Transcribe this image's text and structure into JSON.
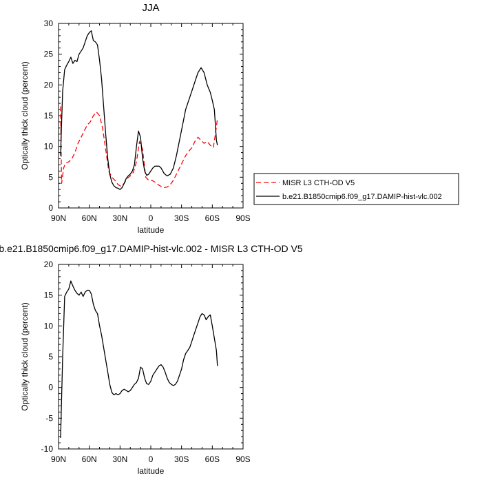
{
  "chart_data": [
    {
      "type": "line",
      "title": "JJA",
      "xlabel": "latitude",
      "ylabel": "Optically thick cloud (percent)",
      "xlim": [
        90,
        -90
      ],
      "ylim": [
        0,
        30
      ],
      "xticks": [
        90,
        60,
        30,
        0,
        -30,
        -60,
        -90
      ],
      "xtick_labels": [
        "90N",
        "60N",
        "30N",
        "0",
        "30S",
        "60S",
        "90S"
      ],
      "yticks": [
        0,
        5,
        10,
        15,
        20,
        25,
        30
      ],
      "ytick_labels": [
        "0",
        "5",
        "10",
        "15",
        "20",
        "25",
        "30"
      ],
      "legend_position": "right",
      "series": [
        {
          "name": "MISR L3 CTH-OD V5",
          "color": "#ff0000",
          "dash": "dashed",
          "x": [
            88,
            87.5,
            87,
            85,
            83,
            80,
            77,
            74,
            71,
            68,
            65,
            62,
            59,
            56,
            53,
            50,
            47,
            44,
            41,
            38,
            35,
            32,
            29,
            26,
            23,
            20,
            17,
            14,
            11,
            8,
            5,
            2,
            -1,
            -4,
            -7,
            -10,
            -13,
            -16,
            -19,
            -22,
            -25,
            -28,
            -31,
            -34,
            -37,
            -40,
            -43,
            -46,
            -49,
            -52,
            -55,
            -58,
            -61,
            -63,
            -65
          ],
          "y": [
            16.5,
            10,
            4.0,
            6.5,
            7.3,
            7.5,
            8.0,
            9.0,
            10.5,
            11.5,
            12.5,
            13.5,
            14.0,
            15.0,
            15.6,
            15.0,
            13.0,
            9.5,
            6.0,
            5.0,
            4.5,
            3.8,
            3.5,
            4.0,
            4.8,
            5.2,
            5.8,
            7.5,
            10.8,
            9.5,
            5.0,
            4.5,
            4.5,
            4.2,
            3.8,
            3.5,
            3.3,
            3.4,
            3.8,
            4.5,
            5.5,
            6.5,
            7.5,
            8.5,
            9.2,
            9.8,
            10.8,
            11.5,
            11.0,
            10.5,
            10.8,
            10.2,
            9.8,
            12.0,
            14.5
          ]
        },
        {
          "name": "b.e21.B1850cmip6.f09_g17.DAMIP-hist-vlc.002",
          "color": "#000000",
          "dash": "solid",
          "x": [
            88,
            87,
            86,
            84,
            82,
            80,
            78,
            76,
            74,
            72,
            70,
            68,
            66,
            64,
            62,
            60,
            58,
            56,
            54,
            52,
            50,
            48,
            46,
            44,
            42,
            40,
            38,
            36,
            34,
            32,
            30,
            28,
            26,
            24,
            22,
            20,
            18,
            16,
            14,
            12,
            10,
            8,
            6,
            4,
            2,
            0,
            -2,
            -4,
            -6,
            -8,
            -10,
            -13,
            -16,
            -19,
            -22,
            -25,
            -28,
            -31,
            -34,
            -37,
            -40,
            -43,
            -46,
            -49,
            -52,
            -55,
            -58,
            -60,
            -62,
            -64,
            -65
          ],
          "y": [
            8.5,
            14,
            19,
            22.5,
            23.2,
            23.8,
            24.5,
            23.5,
            24.0,
            23.8,
            25.0,
            25.5,
            26.0,
            27.0,
            28.0,
            28.5,
            28.8,
            27.2,
            27.0,
            26.5,
            24.0,
            21.0,
            16.5,
            12.0,
            8.0,
            5.5,
            4.2,
            3.6,
            3.3,
            3.2,
            3.0,
            3.3,
            4.0,
            4.8,
            5.2,
            5.5,
            6.0,
            7.0,
            10.0,
            12.5,
            11.5,
            8.0,
            6.0,
            5.3,
            5.5,
            6.0,
            6.5,
            6.8,
            6.8,
            6.8,
            6.5,
            5.6,
            5.2,
            5.5,
            6.5,
            8.5,
            11.0,
            13.5,
            16.0,
            17.5,
            19.0,
            20.5,
            22.0,
            22.8,
            22.0,
            20.0,
            18.8,
            17.5,
            16.0,
            11.0,
            10.2
          ]
        }
      ]
    },
    {
      "type": "line",
      "title": "b.e21.B1850cmip6.f09_g17.DAMIP-hist-vlc.002 - MISR L3 CTH-OD V5",
      "xlabel": "latitude",
      "ylabel": "Optically thick cloud (percent)",
      "xlim": [
        90,
        -90
      ],
      "ylim": [
        -10,
        20
      ],
      "xticks": [
        90,
        60,
        30,
        0,
        -30,
        -60,
        -90
      ],
      "xtick_labels": [
        "90N",
        "60N",
        "30N",
        "0",
        "30S",
        "60S",
        "90S"
      ],
      "yticks": [
        -10,
        -5,
        0,
        5,
        10,
        15,
        20
      ],
      "ytick_labels": [
        "-10",
        "-5",
        "0",
        "5",
        "10",
        "15",
        "20"
      ],
      "series": [
        {
          "color": "#000000",
          "dash": "solid",
          "x": [
            88,
            86,
            84,
            82,
            80,
            78,
            76,
            74,
            72,
            70,
            68,
            66,
            64,
            62,
            60,
            58,
            56,
            54,
            52,
            50,
            48,
            46,
            44,
            42,
            40,
            38,
            36,
            34,
            32,
            30,
            28,
            26,
            24,
            22,
            20,
            18,
            16,
            14,
            12,
            10,
            8,
            6,
            4,
            2,
            0,
            -2,
            -4,
            -6,
            -8,
            -10,
            -12,
            -14,
            -16,
            -18,
            -20,
            -22,
            -24,
            -26,
            -28,
            -30,
            -32,
            -34,
            -36,
            -38,
            -40,
            -42,
            -44,
            -46,
            -48,
            -50,
            -52,
            -54,
            -56,
            -58,
            -60,
            -62,
            -64,
            -65
          ],
          "y": [
            -8.2,
            5,
            14.8,
            15.5,
            16.0,
            17.3,
            16.5,
            15.8,
            15.3,
            15.0,
            15.5,
            14.8,
            15.5,
            15.8,
            15.8,
            15.2,
            13.5,
            12.5,
            12.0,
            10.0,
            8.5,
            6.5,
            4.5,
            2.5,
            0.5,
            -0.8,
            -1.2,
            -1.0,
            -1.2,
            -1.0,
            -0.5,
            -0.3,
            -0.5,
            -0.7,
            -0.5,
            0.0,
            0.5,
            0.8,
            1.5,
            3.3,
            3.0,
            1.5,
            0.6,
            0.5,
            1.0,
            2.0,
            2.5,
            3.0,
            3.5,
            3.7,
            3.3,
            2.5,
            1.5,
            0.8,
            0.5,
            0.3,
            0.5,
            1.0,
            2.0,
            3.0,
            4.5,
            5.5,
            6.0,
            6.5,
            7.5,
            8.5,
            9.5,
            10.5,
            11.5,
            12.0,
            11.8,
            11.0,
            11.5,
            11.8,
            10.0,
            8.0,
            6.0,
            3.5
          ]
        }
      ]
    }
  ]
}
